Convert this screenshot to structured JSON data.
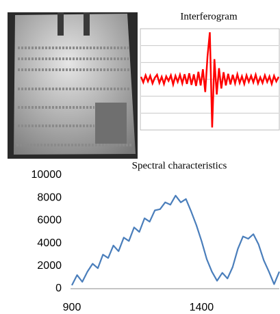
{
  "chart_data": [
    {
      "type": "line",
      "title": "Interferogram",
      "color": "#ff0000",
      "ylim": [
        -1,
        1
      ],
      "grid": true,
      "values": [
        0.05,
        -0.06,
        0.08,
        -0.04,
        0.07,
        -0.08,
        0.03,
        0.09,
        -0.07,
        0.05,
        -0.09,
        0.06,
        -0.03,
        0.08,
        -0.1,
        0.07,
        -0.05,
        0.09,
        -0.08,
        0.1,
        -0.09,
        0.12,
        -0.11,
        0.1,
        -0.13,
        0.15,
        -0.12,
        0.2,
        -0.25,
        0.45,
        0.93,
        -0.95,
        0.4,
        -0.3,
        0.22,
        -0.18,
        0.14,
        -0.12,
        0.11,
        -0.1,
        0.09,
        -0.08,
        0.1,
        -0.07,
        0.06,
        -0.09,
        0.08,
        -0.05,
        0.07,
        -0.06,
        0.09,
        -0.08,
        0.04,
        -0.07,
        0.08,
        -0.05,
        0.06,
        -0.09,
        0.07,
        -0.04,
        0.05
      ]
    },
    {
      "type": "line",
      "title": "Spectral characteristics",
      "color": "#4a7ebb",
      "x": [
        900,
        920,
        940,
        960,
        980,
        1000,
        1020,
        1040,
        1060,
        1080,
        1100,
        1120,
        1140,
        1160,
        1180,
        1200,
        1220,
        1240,
        1260,
        1280,
        1300,
        1320,
        1340,
        1360,
        1380,
        1400,
        1420,
        1440,
        1460,
        1480,
        1500,
        1520,
        1540,
        1560,
        1580,
        1600,
        1620,
        1640,
        1660,
        1680,
        1700
      ],
      "values": [
        300,
        1200,
        600,
        1500,
        2200,
        1800,
        3000,
        2700,
        3800,
        3300,
        4500,
        4200,
        5400,
        5000,
        6200,
        5900,
        6900,
        7000,
        7600,
        7400,
        8200,
        7600,
        7900,
        6800,
        5600,
        4200,
        2600,
        1500,
        700,
        1400,
        900,
        1900,
        3500,
        4600,
        4400,
        4800,
        3900,
        2500,
        1500,
        400,
        1500
      ],
      "xlim": [
        900,
        1700
      ],
      "ylim": [
        0,
        10000
      ],
      "xticks": [
        900,
        1400
      ],
      "yticks": [
        0,
        2000,
        4000,
        6000,
        8000,
        10000
      ]
    }
  ]
}
